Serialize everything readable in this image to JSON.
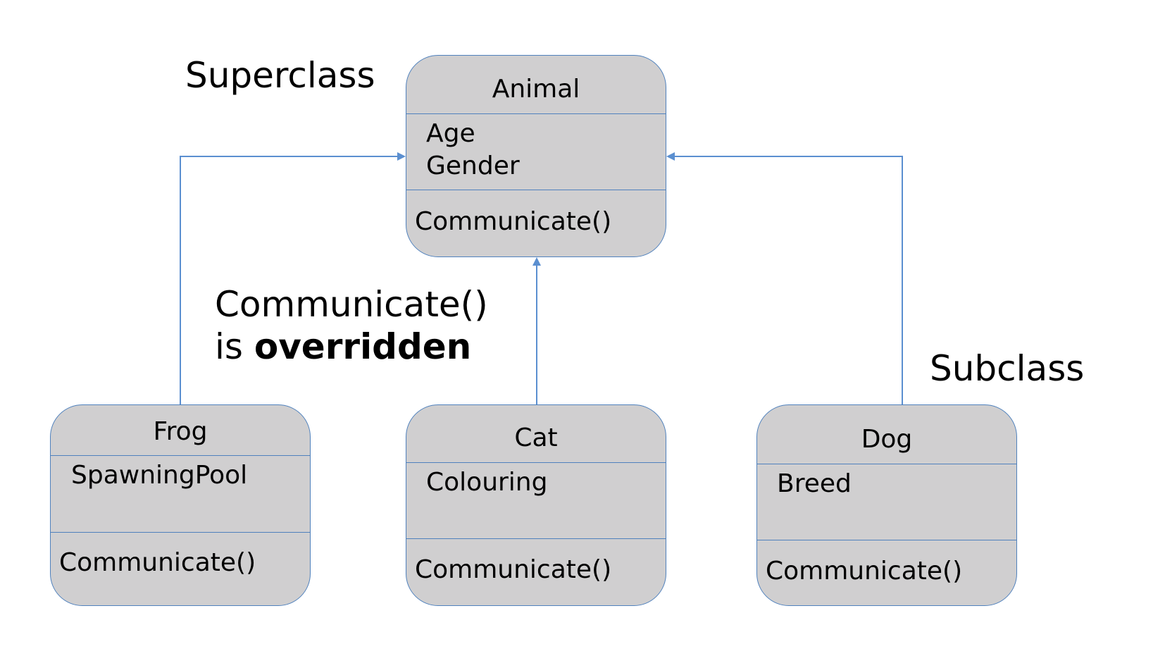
{
  "labels": {
    "superclass": "Superclass",
    "subclass": "Subclass",
    "note_line1": "Communicate()",
    "note_line2_prefix": "is",
    "note_line2_bold": "overridden"
  },
  "colors": {
    "box_fill": "#d0cfd0",
    "box_border": "#4f81bd",
    "connector": "#5b8fd0"
  },
  "classes": {
    "animal": {
      "name": "Animal",
      "attributes": [
        "Age",
        "Gender"
      ],
      "method": "Communicate()"
    },
    "frog": {
      "name": "Frog",
      "attributes": [
        "SpawningPool"
      ],
      "method": "Communicate()"
    },
    "cat": {
      "name": "Cat",
      "attributes": [
        "Colouring"
      ],
      "method": "Communicate()"
    },
    "dog": {
      "name": "Dog",
      "attributes": [
        "Breed"
      ],
      "method": "Communicate()"
    }
  }
}
